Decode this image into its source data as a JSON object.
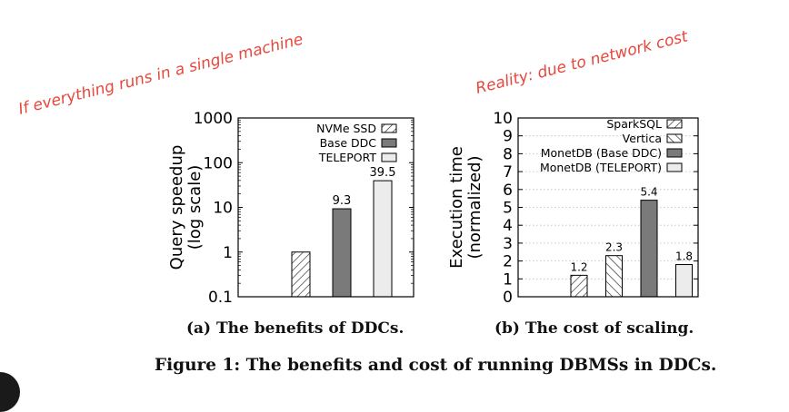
{
  "annotations": {
    "left": "If everything runs in a single machine",
    "right": "Reality: due to network cost"
  },
  "captions": {
    "a": "(a) The benefits of DDCs.",
    "b": "(b) The cost of scaling.",
    "figure": "Figure 1: The benefits and cost of running DBMSs in DDCs."
  },
  "colors": {
    "annotation": "#e8473c",
    "dark_bar": "#7a7a7a",
    "light_bar": "#ececec"
  },
  "chart_data": [
    {
      "type": "bar",
      "ylabel": "Query speedup\n(log scale)",
      "yscale": "log",
      "ylim": [
        0.1,
        1000
      ],
      "yticks": [
        "0.1",
        "1",
        "10",
        "100",
        "1000"
      ],
      "grid": false,
      "legend_position": "top-right",
      "series": [
        {
          "name": "NVMe SSD",
          "value": 1,
          "label": "",
          "pattern": "hatch"
        },
        {
          "name": "Base DDC",
          "value": 9.3,
          "label": "9.3",
          "pattern": "dark"
        },
        {
          "name": "TELEPORT",
          "value": 39.5,
          "label": "39.5",
          "pattern": "light"
        }
      ]
    },
    {
      "type": "bar",
      "ylabel": "Execution time\n(normalized)",
      "ylim": [
        0,
        10
      ],
      "yticks": [
        "0",
        "1",
        "2",
        "3",
        "4",
        "5",
        "6",
        "7",
        "8",
        "9",
        "10"
      ],
      "grid": true,
      "legend_position": "top-right",
      "series": [
        {
          "name": "SparkSQL",
          "value": 1.2,
          "label": "1.2",
          "pattern": "hatch"
        },
        {
          "name": "Vertica",
          "value": 2.3,
          "label": "2.3",
          "pattern": "hatch2"
        },
        {
          "name": "MonetDB (Base DDC)",
          "value": 5.4,
          "label": "5.4",
          "pattern": "dark"
        },
        {
          "name": "MonetDB (TELEPORT)",
          "value": 1.8,
          "label": "1.8",
          "pattern": "light"
        }
      ]
    }
  ]
}
